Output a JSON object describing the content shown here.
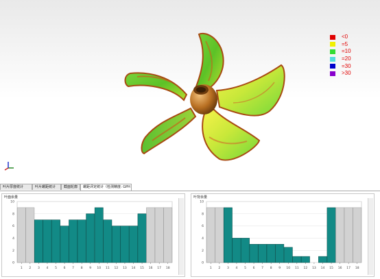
{
  "legend": {
    "items": [
      {
        "label": "<0",
        "color": "#e00000"
      },
      {
        "label": "=5",
        "color": "#f0f000"
      },
      {
        "label": "=10",
        "color": "#33dd33"
      },
      {
        "label": "=20",
        "color": "#55dddd"
      },
      {
        "label": "=30",
        "color": "#0000cc"
      },
      {
        "label": ">30",
        "color": "#8800cc"
      }
    ]
  },
  "tabs": [
    {
      "label": "叶片厚度统计"
    },
    {
      "label": "叶片螺距统计"
    },
    {
      "label": "截面轮廓"
    },
    {
      "label": "螺距评定统计（检测精度: GPH S%）"
    }
  ],
  "chart_data": [
    {
      "type": "bar",
      "title": "叶面余量",
      "categories": [
        "1",
        "2",
        "3",
        "4",
        "5",
        "6",
        "7",
        "8",
        "9",
        "10",
        "11",
        "12",
        "13",
        "14",
        "15",
        "16",
        "17",
        "18"
      ],
      "values": [
        9,
        9,
        7,
        7,
        7,
        6,
        7,
        7,
        8,
        9,
        7,
        6,
        6,
        6,
        8,
        9,
        9,
        9
      ],
      "highlighted": [
        false,
        false,
        true,
        true,
        true,
        true,
        true,
        true,
        true,
        true,
        true,
        true,
        true,
        true,
        true,
        false,
        false,
        false
      ],
      "ylim": [
        0,
        10
      ],
      "yticks": [
        "0",
        "2",
        "4",
        "6",
        "8",
        "10"
      ],
      "colors": {
        "highlight": "#128a86",
        "normal": "#d2d2d2"
      }
    },
    {
      "type": "bar",
      "title": "叶背余量",
      "categories": [
        "1",
        "2",
        "3",
        "4",
        "5",
        "6",
        "7",
        "8",
        "9",
        "10",
        "11",
        "12",
        "13",
        "14",
        "15",
        "16",
        "17",
        "18"
      ],
      "values": [
        9,
        9,
        9,
        4,
        4,
        3,
        3,
        3,
        3,
        2.5,
        1,
        1,
        0,
        1,
        9,
        9,
        9,
        9
      ],
      "highlighted": [
        false,
        false,
        true,
        true,
        true,
        true,
        true,
        true,
        true,
        true,
        true,
        true,
        true,
        true,
        true,
        false,
        false,
        false
      ],
      "ylim": [
        0,
        10
      ],
      "yticks": [
        "0",
        "2",
        "4",
        "6",
        "8",
        "10"
      ],
      "colors": {
        "highlight": "#128a86",
        "normal": "#d2d2d2"
      }
    }
  ]
}
